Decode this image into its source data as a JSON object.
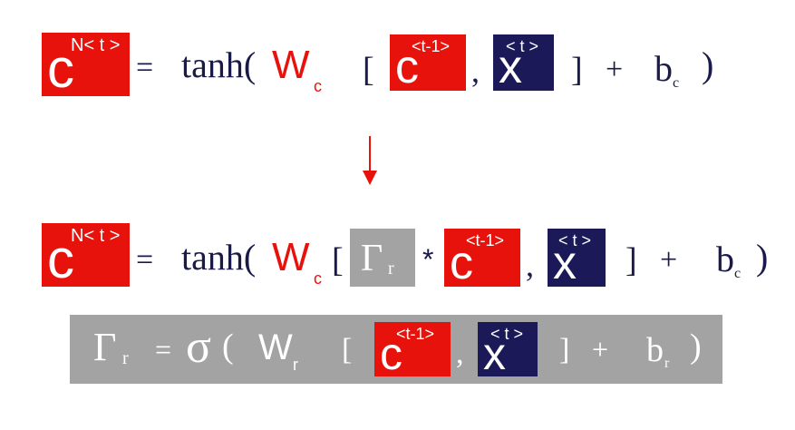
{
  "eq1": {
    "lhs_var": "c",
    "lhs_sup": "N< t >",
    "equals": "=",
    "func": "tanh(",
    "weight": "W",
    "weight_sub": "c",
    "open_bracket": "[",
    "c_var": "c",
    "c_sup": "<t-1>",
    "comma": ",",
    "x_var": "x",
    "x_sup": "< t >",
    "close_bracket": "]",
    "plus": "+",
    "bias": "b",
    "bias_sub": "c",
    "close_paren": ")"
  },
  "arrow": {
    "color": "#e8120c"
  },
  "eq2": {
    "lhs_var": "c",
    "lhs_sup": "N< t >",
    "equals": "=",
    "func": "tanh(",
    "weight": "W",
    "weight_sub": "c",
    "open_bracket": "[",
    "gate": "Γ",
    "gate_sub": "r",
    "times": "*",
    "c_var": "c",
    "c_sup": "<t-1>",
    "comma": ",",
    "x_var": "x",
    "x_sup": "< t >",
    "close_bracket": "]",
    "plus": "+",
    "bias": "b",
    "bias_sub": "c",
    "close_paren": ")"
  },
  "eq3": {
    "gate": "Γ",
    "gate_sub": "r",
    "equals": "=",
    "sigma": "σ",
    "open_paren": "(",
    "weight": "W",
    "weight_sub": "r",
    "open_bracket": "[",
    "c_var": "c",
    "c_sup": "<t-1>",
    "comma": ",",
    "x_var": "x",
    "x_sup": "< t >",
    "close_bracket": "]",
    "plus": "+",
    "bias": "b",
    "bias_sub": "r",
    "close_paren": ")"
  },
  "colors": {
    "red": "#e8120c",
    "navy": "#1b1958",
    "gray": "#a3a3a3",
    "text": "#1a1a4a"
  }
}
